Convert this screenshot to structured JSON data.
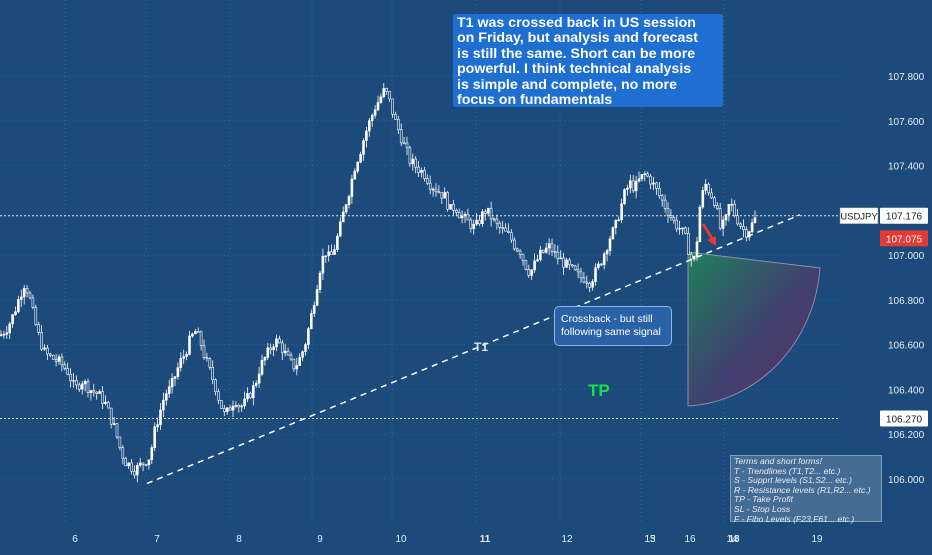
{
  "chart_data": {
    "type": "candlestick",
    "symbol": "USDJPY",
    "last_price": "107.176",
    "price_marker": "107.075",
    "tp_level": "106.270",
    "ylim": [
      105.85,
      107.95
    ],
    "y_ticks": [
      "107.800",
      "107.600",
      "107.400",
      "107.000",
      "106.800",
      "106.600",
      "106.400",
      "106.200",
      "106.000"
    ],
    "x_ticks": [
      "6",
      "7",
      "8",
      "9",
      "10",
      "11",
      "12",
      "13",
      "14",
      "15",
      "16",
      "18",
      "19"
    ],
    "grid": true,
    "path_points": [
      [
        0,
        106.64
      ],
      [
        8,
        106.68
      ],
      [
        14,
        106.74
      ],
      [
        20,
        106.82
      ],
      [
        25,
        106.88
      ],
      [
        30,
        106.8
      ],
      [
        35,
        106.7
      ],
      [
        40,
        106.62
      ],
      [
        45,
        106.56
      ],
      [
        52,
        106.54
      ],
      [
        60,
        106.52
      ],
      [
        68,
        106.48
      ],
      [
        75,
        106.4
      ],
      [
        82,
        106.44
      ],
      [
        90,
        106.4
      ],
      [
        98,
        106.38
      ],
      [
        105,
        106.34
      ],
      [
        110,
        106.28
      ],
      [
        115,
        106.22
      ],
      [
        120,
        106.14
      ],
      [
        125,
        106.08
      ],
      [
        130,
        106.06
      ],
      [
        135,
        106.04
      ],
      [
        140,
        106.06
      ],
      [
        145,
        106.08
      ],
      [
        150,
        106.1
      ],
      [
        155,
        106.22
      ],
      [
        160,
        106.3
      ],
      [
        165,
        106.38
      ],
      [
        170,
        106.4
      ],
      [
        175,
        106.46
      ],
      [
        180,
        106.52
      ],
      [
        185,
        106.56
      ],
      [
        190,
        106.62
      ],
      [
        195,
        106.66
      ],
      [
        200,
        106.62
      ],
      [
        205,
        106.54
      ],
      [
        210,
        106.48
      ],
      [
        215,
        106.42
      ],
      [
        220,
        106.34
      ],
      [
        225,
        106.28
      ],
      [
        230,
        106.32
      ],
      [
        235,
        106.36
      ],
      [
        240,
        106.32
      ],
      [
        245,
        106.34
      ],
      [
        250,
        106.38
      ],
      [
        255,
        106.42
      ],
      [
        260,
        106.5
      ],
      [
        265,
        106.54
      ],
      [
        270,
        106.58
      ],
      [
        275,
        106.62
      ],
      [
        280,
        106.6
      ],
      [
        285,
        106.56
      ],
      [
        290,
        106.52
      ],
      [
        295,
        106.5
      ],
      [
        300,
        106.54
      ],
      [
        305,
        106.6
      ],
      [
        310,
        106.7
      ],
      [
        315,
        106.82
      ],
      [
        320,
        106.94
      ],
      [
        325,
        107.02
      ],
      [
        330,
        106.98
      ],
      [
        335,
        107.04
      ],
      [
        340,
        107.12
      ],
      [
        345,
        107.22
      ],
      [
        350,
        107.3
      ],
      [
        355,
        107.4
      ],
      [
        360,
        107.46
      ],
      [
        365,
        107.54
      ],
      [
        370,
        107.6
      ],
      [
        375,
        107.66
      ],
      [
        380,
        107.7
      ],
      [
        385,
        107.74
      ],
      [
        390,
        107.68
      ],
      [
        395,
        107.6
      ],
      [
        400,
        107.54
      ],
      [
        405,
        107.48
      ],
      [
        410,
        107.42
      ],
      [
        415,
        107.4
      ],
      [
        420,
        107.38
      ],
      [
        425,
        107.36
      ],
      [
        430,
        107.32
      ],
      [
        435,
        107.3
      ],
      [
        440,
        107.28
      ],
      [
        445,
        107.26
      ],
      [
        450,
        107.2
      ],
      [
        455,
        107.22
      ],
      [
        460,
        107.18
      ],
      [
        465,
        107.16
      ],
      [
        470,
        107.14
      ],
      [
        475,
        107.12
      ],
      [
        480,
        107.16
      ],
      [
        485,
        107.2
      ],
      [
        490,
        107.18
      ],
      [
        495,
        107.14
      ],
      [
        500,
        107.12
      ],
      [
        505,
        107.1
      ],
      [
        510,
        107.08
      ],
      [
        515,
        107.04
      ],
      [
        520,
        107.02
      ],
      [
        525,
        106.96
      ],
      [
        530,
        106.92
      ],
      [
        535,
        106.96
      ],
      [
        540,
        107.0
      ],
      [
        545,
        107.02
      ],
      [
        550,
        107.04
      ],
      [
        555,
        107.0
      ],
      [
        560,
        106.98
      ],
      [
        565,
        106.96
      ],
      [
        570,
        106.94
      ],
      [
        575,
        106.92
      ],
      [
        580,
        106.9
      ],
      [
        585,
        106.9
      ],
      [
        590,
        106.88
      ],
      [
        595,
        106.92
      ],
      [
        600,
        106.96
      ],
      [
        605,
        107.02
      ],
      [
        610,
        107.08
      ],
      [
        615,
        107.12
      ],
      [
        620,
        107.2
      ],
      [
        625,
        107.28
      ],
      [
        630,
        107.32
      ],
      [
        635,
        107.3
      ],
      [
        640,
        107.34
      ],
      [
        645,
        107.36
      ],
      [
        650,
        107.34
      ],
      [
        655,
        107.3
      ],
      [
        660,
        107.26
      ],
      [
        665,
        107.22
      ],
      [
        670,
        107.18
      ],
      [
        675,
        107.14
      ],
      [
        680,
        107.12
      ],
      [
        685,
        107.08
      ],
      [
        690,
        107.0
      ],
      [
        693,
        106.96
      ],
      [
        696,
        107.02
      ],
      [
        700,
        107.22
      ],
      [
        705,
        107.32
      ],
      [
        710,
        107.28
      ],
      [
        715,
        107.24
      ],
      [
        720,
        107.12
      ],
      [
        725,
        107.14
      ],
      [
        730,
        107.24
      ],
      [
        735,
        107.18
      ],
      [
        740,
        107.14
      ],
      [
        745,
        107.1
      ],
      [
        750,
        107.12
      ],
      [
        755,
        107.16
      ]
    ],
    "trendlines": [
      {
        "label": "T1",
        "from": [
          147,
          105.98
        ],
        "to": [
          800,
          107.18
        ]
      }
    ],
    "price_lines": [
      "107.176",
      "106.270"
    ],
    "annotations": {
      "note": [
        "T1 was crossed back in US session",
        "on Friday, but analysis and forecast",
        "is still the same. Short can be more",
        "powerful. I think technical analysis",
        "is simple and complete, no more",
        "focus on fundamentals"
      ],
      "callout": [
        "Crossback - but still",
        "following same signal"
      ],
      "tp_label": "TP",
      "t1_label": "T1",
      "legend": [
        "Terms and short forms!",
        "T - Trendlines (T1,T2... etc.)",
        "S - Supprt levels (S1,S2... etc.)",
        "R - Resistance levels (R1,R2... etc.)",
        "TP - Take Profit",
        "SL - Stop Loss",
        "F - Fibo Levels  (F23,F61... etc.)"
      ]
    },
    "colors": {
      "background": "#1b4a7b",
      "grid": "#2f6a9e",
      "candle": "#ffffff",
      "trendline": "#ffffff",
      "note_box": "#1e6fd1",
      "price_marker": "#e53935",
      "arrow": "#e53935",
      "tp_text": "#19e04a"
    }
  }
}
